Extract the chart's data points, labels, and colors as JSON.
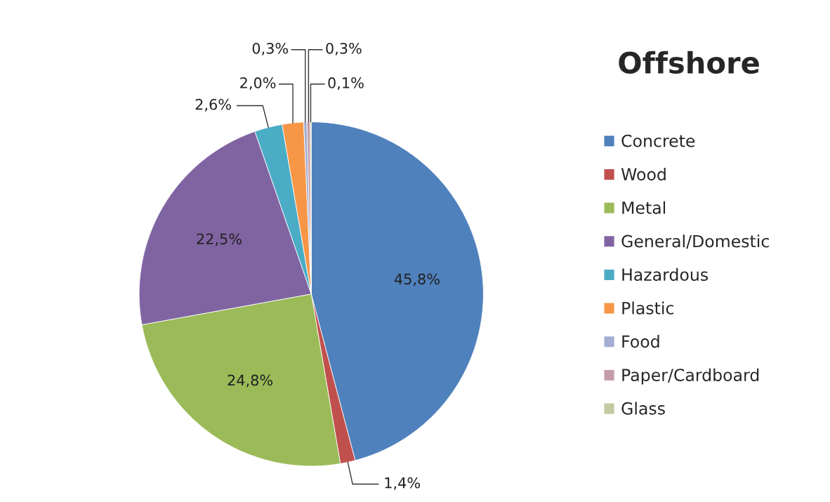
{
  "chart_data": {
    "type": "pie",
    "title": "Offshore",
    "categories": [
      "Concrete",
      "Wood",
      "Metal",
      "General/Domestic",
      "Hazardous",
      "Plastic",
      "Food",
      "Paper/Cardboard",
      "Glass"
    ],
    "values": [
      45.8,
      1.4,
      24.8,
      22.5,
      2.6,
      2.0,
      0.3,
      0.3,
      0.1
    ],
    "value_labels": [
      "45,8%",
      "1,4%",
      "24,8%",
      "22,5%",
      "2,6%",
      "2,0%",
      "0,3%",
      "0,3%",
      "0,1%"
    ],
    "colors": [
      "#4f81bd",
      "#c0504d",
      "#9bbb59",
      "#8064a2",
      "#4bacc6",
      "#f79646",
      "#a3aed2",
      "#c49ba6",
      "#c3c9a0"
    ],
    "legend": "right"
  }
}
